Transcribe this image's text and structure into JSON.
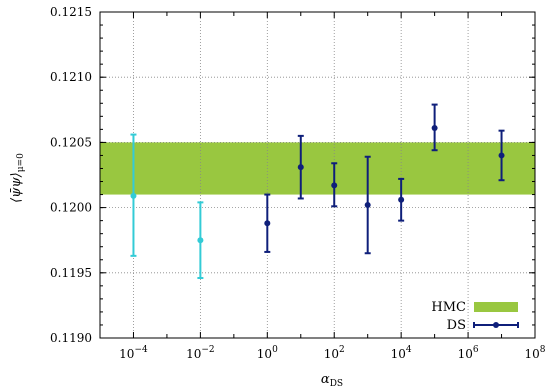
{
  "chart_data": {
    "type": "scatter",
    "xscale": "log",
    "xlim": [
      1e-05,
      100000000.0
    ],
    "ylim": [
      0.119,
      0.1215
    ],
    "grid": true,
    "legend_placement": "bottom-right",
    "xlabel": "αDS",
    "ylabel": "⟨ψ̄ψ⟩μ=0",
    "x_ticks": [
      {
        "value": 0.0001,
        "base": "10",
        "exp": "−4"
      },
      {
        "value": 0.01,
        "base": "10",
        "exp": "−2"
      },
      {
        "value": 1,
        "base": "10",
        "exp": "0"
      },
      {
        "value": 100.0,
        "base": "10",
        "exp": "2"
      },
      {
        "value": 10000.0,
        "base": "10",
        "exp": "4"
      },
      {
        "value": 1000000.0,
        "base": "10",
        "exp": "6"
      },
      {
        "value": 100000000.0,
        "base": "10",
        "exp": "8"
      }
    ],
    "y_ticks": [
      {
        "value": 0.119,
        "label": "0.1190"
      },
      {
        "value": 0.1195,
        "label": "0.1195"
      },
      {
        "value": 0.12,
        "label": "0.1200"
      },
      {
        "value": 0.1205,
        "label": "0.1205"
      },
      {
        "value": 0.121,
        "label": "0.1210"
      },
      {
        "value": 0.1215,
        "label": "0.1215"
      }
    ],
    "hmc_band": {
      "name": "HMC",
      "y_low": 0.1201,
      "y_high": 0.1205,
      "color": "#99c740"
    },
    "series": [
      {
        "name": "",
        "color": "#33cbd6",
        "points": [
          {
            "x": 0.0001,
            "y": 0.12009,
            "ylo": 0.11963,
            "yhi": 0.12056
          },
          {
            "x": 0.01,
            "y": 0.11975,
            "ylo": 0.11946,
            "yhi": 0.12004
          }
        ]
      },
      {
        "name": "DS",
        "color": "#0f1f7a",
        "points": [
          {
            "x": 1,
            "y": 0.11988,
            "ylo": 0.11966,
            "yhi": 0.1201
          },
          {
            "x": 10,
            "y": 0.12031,
            "ylo": 0.12007,
            "yhi": 0.12055
          },
          {
            "x": 100,
            "y": 0.12017,
            "ylo": 0.12001,
            "yhi": 0.12034
          },
          {
            "x": 1000,
            "y": 0.12002,
            "ylo": 0.11965,
            "yhi": 0.12039
          },
          {
            "x": 10000,
            "y": 0.12006,
            "ylo": 0.1199,
            "yhi": 0.12022
          },
          {
            "x": 100000,
            "y": 0.12061,
            "ylo": 0.12044,
            "yhi": 0.12079
          },
          {
            "x": 10000000,
            "y": 0.1204,
            "ylo": 0.12021,
            "yhi": 0.12059
          }
        ]
      }
    ]
  }
}
